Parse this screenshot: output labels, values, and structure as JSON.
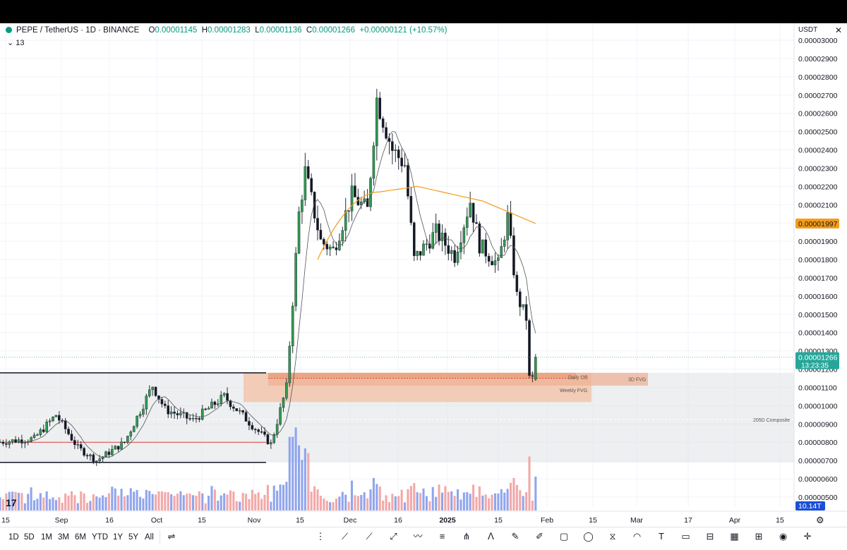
{
  "symbol": {
    "title": "PEPE / TetherUS · 1D · BINANCE",
    "open_label": "O",
    "open": "0.00001145",
    "high_label": "H",
    "high": "0.00001283",
    "low_label": "L",
    "low": "0.00001136",
    "close_label": "C",
    "close": "0.00001266",
    "change": "+0.00000121 (+10.57%)",
    "indicators_count": "13"
  },
  "currency_label": "USDT",
  "price_axis": {
    "ticks": [
      "0.00003000",
      "0.00002900",
      "0.00002800",
      "0.00002700",
      "0.00002600",
      "0.00002500",
      "0.00002400",
      "0.00002300",
      "0.00002200",
      "0.00002100",
      "0.00002000",
      "0.00001900",
      "0.00001800",
      "0.00001700",
      "0.00001600",
      "0.00001500",
      "0.00001400",
      "0.00001300",
      "0.00001200",
      "0.00001100",
      "0.00001000",
      "0.00000900",
      "0.00000800",
      "0.00000700",
      "0.00000600",
      "0.00000500"
    ],
    "ma_label": "0.00001997",
    "last_price_label": "0.00001266",
    "countdown_label": "13:23:35",
    "volume_label": "10.14T",
    "ma_color": "#f59c1a",
    "last_price_color": "#26a69a"
  },
  "time_axis": {
    "ticks": [
      "15",
      "Sep",
      "16",
      "Oct",
      "15",
      "Nov",
      "15",
      "Dec",
      "16",
      "2025",
      "15",
      "Feb",
      "15",
      "Mar",
      "17",
      "Apr",
      "15"
    ]
  },
  "annotations": {
    "daily_ob": "Daily OB",
    "weekly_fvg": "Weekly FVG",
    "fvg_3d": "3D FVG",
    "composite": "205D Composite"
  },
  "range_buttons": [
    "1D",
    "5D",
    "1M",
    "3M",
    "6M",
    "YTD",
    "1Y",
    "5Y",
    "All"
  ],
  "chart_data": {
    "type": "candlestick",
    "title": "PEPE / TetherUS · 1D · BINANCE",
    "ylim": [
      5e-06,
      3e-05
    ],
    "y_scale": "linear",
    "grid": true,
    "x_range": [
      "2024-08-08",
      "2025-04-20"
    ],
    "candles_start": "2024-08-08",
    "candles_end": "2025-01-27",
    "last_candle": {
      "open": 1.145e-05,
      "high": 1.283e-05,
      "low": 1.136e-05,
      "close": 1.266e-05
    },
    "moving_average_last": 1.997e-05,
    "zones": [
      {
        "label": "Daily OB",
        "from": 1.15e-05,
        "to": 1.18e-05
      },
      {
        "label": "Weekly FVG",
        "from": 1.02e-05,
        "to": 1.18e-05
      },
      {
        "label": "3D FVG",
        "from": 1.11e-05,
        "to": 1.18e-05
      },
      {
        "label": "205D Composite",
        "from": 6.9e-06,
        "to": 1.18e-05
      }
    ]
  }
}
